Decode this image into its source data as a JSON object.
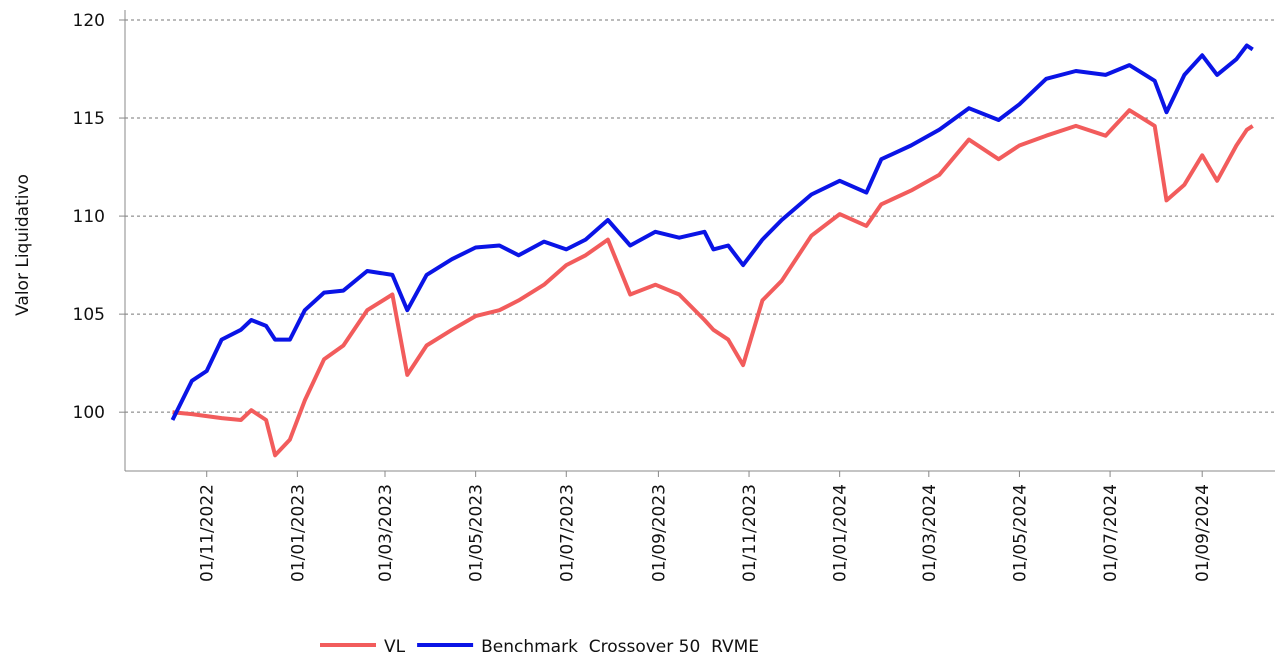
{
  "chart_data": {
    "type": "line",
    "y_label": "Valor Liquidativo",
    "x": [
      "09/10/2022",
      "22/10/2022",
      "01/11/2022",
      "11/11/2022",
      "24/11/2022",
      "01/12/2022",
      "11/12/2022",
      "17/12/2022",
      "27/12/2022",
      "06/01/2023",
      "19/01/2023",
      "01/02/2023",
      "17/02/2023",
      "06/03/2023",
      "16/03/2023",
      "29/03/2023",
      "15/04/2023",
      "01/05/2023",
      "17/05/2023",
      "30/05/2023",
      "16/06/2023",
      "01/07/2023",
      "14/07/2023",
      "29/07/2023",
      "13/08/2023",
      "30/08/2023",
      "15/09/2023",
      "02/10/2023",
      "08/10/2023",
      "18/10/2023",
      "28/10/2023",
      "10/11/2023",
      "23/11/2023",
      "13/12/2023",
      "01/01/2024",
      "19/01/2024",
      "29/01/2024",
      "18/02/2024",
      "08/03/2024",
      "28/03/2024",
      "17/04/2024",
      "01/05/2024",
      "19/05/2024",
      "08/06/2024",
      "28/06/2024",
      "14/07/2024",
      "31/07/2024",
      "08/08/2024",
      "20/08/2024",
      "01/09/2024",
      "11/09/2024",
      "24/09/2024",
      "01/10/2024",
      "05/10/2024"
    ],
    "series": [
      {
        "name": "VL",
        "color": "#f25c5c",
        "values": [
          100.0,
          99.9,
          99.8,
          99.7,
          99.6,
          100.1,
          99.6,
          97.8,
          98.6,
          100.6,
          102.7,
          103.4,
          105.2,
          106.0,
          101.9,
          103.4,
          104.2,
          104.9,
          105.2,
          105.7,
          106.5,
          107.5,
          108.0,
          108.8,
          106.0,
          106.5,
          106.0,
          104.7,
          104.2,
          103.7,
          102.4,
          105.7,
          106.7,
          109.0,
          110.1,
          109.5,
          110.6,
          111.3,
          112.1,
          113.9,
          112.9,
          113.6,
          114.1,
          114.6,
          114.1,
          115.4,
          114.6,
          110.8,
          111.6,
          113.1,
          111.8,
          113.6,
          114.4,
          114.6
        ]
      },
      {
        "name": "Benchmark  Crossover 50  RVME",
        "color": "#0a14e6",
        "values": [
          99.6,
          101.6,
          102.1,
          103.7,
          104.2,
          104.7,
          104.4,
          103.7,
          103.7,
          105.2,
          106.1,
          106.2,
          107.2,
          107.0,
          105.2,
          107.0,
          107.8,
          108.4,
          108.5,
          108.0,
          108.7,
          108.3,
          108.8,
          109.8,
          108.5,
          109.2,
          108.9,
          109.2,
          108.3,
          108.5,
          107.5,
          108.8,
          109.8,
          111.1,
          111.8,
          111.2,
          112.9,
          113.6,
          114.4,
          115.5,
          114.9,
          115.7,
          117.0,
          117.4,
          117.2,
          117.7,
          116.9,
          115.3,
          117.2,
          118.2,
          117.2,
          118.0,
          118.7,
          118.5
        ]
      }
    ],
    "xlim": [
      "07/09/2022",
      "20/10/2024"
    ],
    "xticks": [
      "01/11/2022",
      "01/01/2023",
      "01/03/2023",
      "01/05/2023",
      "01/07/2023",
      "01/09/2023",
      "01/11/2023",
      "01/01/2024",
      "01/03/2024",
      "01/05/2024",
      "01/07/2024",
      "01/09/2024"
    ],
    "ylim": [
      97,
      120
    ],
    "yticks": [
      100,
      105,
      110,
      115,
      120
    ],
    "grid": true,
    "legend": "bottom"
  }
}
